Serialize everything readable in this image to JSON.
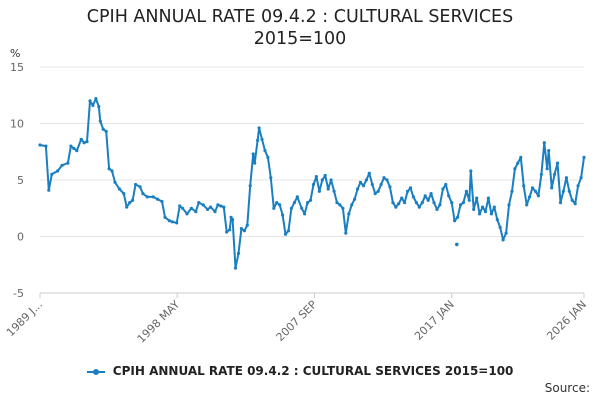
{
  "chart_data": {
    "type": "line",
    "title_lines": [
      "CPIH ANNUAL RATE 09.4.2 : CULTURAL SERVICES",
      "2015=100"
    ],
    "ylabel": "%",
    "ylim": [
      -5,
      15
    ],
    "yticks": [
      15,
      10,
      5,
      0,
      -5
    ],
    "xlim": [
      1989.0,
      2026.0
    ],
    "xticks": [
      {
        "label": "1989 J...",
        "x": 1989.0
      },
      {
        "label": "1998 MAY",
        "x": 1998.33
      },
      {
        "label": "2007 SEP",
        "x": 2007.67
      },
      {
        "label": "2017 JAN",
        "x": 2017.0
      },
      {
        "label": "2026 JAN",
        "x": 2026.0
      }
    ],
    "grid": true,
    "legend": "bottom-center",
    "color": "#1a7fc1",
    "series": [
      {
        "name": "CPIH ANNUAL RATE 09.4.2 : CULTURAL SERVICES 2015=100",
        "points": [
          [
            1989.0,
            8.1
          ],
          [
            1989.4,
            8.0
          ],
          [
            1989.6,
            4.1
          ],
          [
            1989.8,
            5.5
          ],
          [
            1990.2,
            5.8
          ],
          [
            1990.5,
            6.3
          ],
          [
            1990.9,
            6.5
          ],
          [
            1991.1,
            8.0
          ],
          [
            1991.3,
            7.8
          ],
          [
            1991.5,
            7.6
          ],
          [
            1991.8,
            8.6
          ],
          [
            1992.0,
            8.3
          ],
          [
            1992.2,
            8.4
          ],
          [
            1992.4,
            12.0
          ],
          [
            1992.6,
            11.6
          ],
          [
            1992.8,
            12.2
          ],
          [
            1993.0,
            11.5
          ],
          [
            1993.1,
            10.2
          ],
          [
            1993.3,
            9.5
          ],
          [
            1993.5,
            9.3
          ],
          [
            1993.7,
            6.0
          ],
          [
            1993.9,
            5.8
          ],
          [
            1994.1,
            4.8
          ],
          [
            1994.4,
            4.2
          ],
          [
            1994.7,
            3.8
          ],
          [
            1994.9,
            2.6
          ],
          [
            1995.1,
            3.0
          ],
          [
            1995.3,
            3.2
          ],
          [
            1995.5,
            4.6
          ],
          [
            1995.8,
            4.4
          ],
          [
            1996.0,
            3.8
          ],
          [
            1996.3,
            3.5
          ],
          [
            1996.7,
            3.5
          ],
          [
            1997.0,
            3.3
          ],
          [
            1997.3,
            3.1
          ],
          [
            1997.5,
            1.7
          ],
          [
            1997.8,
            1.4
          ],
          [
            1998.0,
            1.3
          ],
          [
            1998.3,
            1.2
          ],
          [
            1998.5,
            2.7
          ],
          [
            1998.7,
            2.5
          ],
          [
            1999.0,
            2.0
          ],
          [
            1999.3,
            2.5
          ],
          [
            1999.6,
            2.2
          ],
          [
            1999.8,
            3.0
          ],
          [
            2000.1,
            2.8
          ],
          [
            2000.4,
            2.4
          ],
          [
            2000.6,
            2.6
          ],
          [
            2000.9,
            2.2
          ],
          [
            2001.1,
            2.8
          ],
          [
            2001.3,
            2.7
          ],
          [
            2001.5,
            2.6
          ],
          [
            2001.7,
            0.4
          ],
          [
            2001.9,
            0.6
          ],
          [
            2002.0,
            1.7
          ],
          [
            2002.1,
            1.5
          ],
          [
            2002.3,
            -2.8
          ],
          [
            2002.5,
            -1.5
          ],
          [
            2002.7,
            0.7
          ],
          [
            2002.9,
            0.5
          ],
          [
            2003.1,
            1.0
          ],
          [
            2003.3,
            4.5
          ],
          [
            2003.5,
            7.3
          ],
          [
            2003.6,
            6.5
          ],
          [
            2003.8,
            8.5
          ],
          [
            2003.9,
            9.6
          ],
          [
            2004.1,
            8.6
          ],
          [
            2004.3,
            7.6
          ],
          [
            2004.5,
            7.0
          ],
          [
            2004.7,
            5.2
          ],
          [
            2004.9,
            2.5
          ],
          [
            2005.1,
            3.0
          ],
          [
            2005.3,
            2.8
          ],
          [
            2005.5,
            1.9
          ],
          [
            2005.7,
            0.2
          ],
          [
            2005.9,
            0.5
          ],
          [
            2006.1,
            2.5
          ],
          [
            2006.3,
            3.0
          ],
          [
            2006.5,
            3.5
          ],
          [
            2006.8,
            2.5
          ],
          [
            2007.0,
            2.0
          ],
          [
            2007.2,
            3.0
          ],
          [
            2007.4,
            3.2
          ],
          [
            2007.6,
            4.6
          ],
          [
            2007.8,
            5.3
          ],
          [
            2008.0,
            4.0
          ],
          [
            2008.2,
            5.0
          ],
          [
            2008.4,
            5.4
          ],
          [
            2008.6,
            4.2
          ],
          [
            2008.8,
            5.0
          ],
          [
            2009.0,
            4.0
          ],
          [
            2009.2,
            3.0
          ],
          [
            2009.4,
            2.8
          ],
          [
            2009.6,
            2.5
          ],
          [
            2009.8,
            0.3
          ],
          [
            2010.0,
            2.0
          ],
          [
            2010.2,
            2.8
          ],
          [
            2010.4,
            3.3
          ],
          [
            2010.6,
            4.2
          ],
          [
            2010.8,
            4.8
          ],
          [
            2011.0,
            4.5
          ],
          [
            2011.2,
            5.0
          ],
          [
            2011.4,
            5.6
          ],
          [
            2011.6,
            4.6
          ],
          [
            2011.8,
            3.8
          ],
          [
            2012.0,
            4.0
          ],
          [
            2012.2,
            4.6
          ],
          [
            2012.4,
            5.2
          ],
          [
            2012.6,
            5.0
          ],
          [
            2012.8,
            4.4
          ],
          [
            2013.0,
            3.0
          ],
          [
            2013.2,
            2.6
          ],
          [
            2013.4,
            2.9
          ],
          [
            2013.6,
            3.4
          ],
          [
            2013.8,
            3.0
          ],
          [
            2014.0,
            4.0
          ],
          [
            2014.2,
            4.3
          ],
          [
            2014.4,
            3.5
          ],
          [
            2014.6,
            3.0
          ],
          [
            2014.8,
            2.6
          ],
          [
            2015.0,
            3.0
          ],
          [
            2015.2,
            3.6
          ],
          [
            2015.4,
            3.2
          ],
          [
            2015.6,
            3.8
          ],
          [
            2015.8,
            3.0
          ],
          [
            2016.0,
            2.4
          ],
          [
            2016.2,
            2.8
          ],
          [
            2016.4,
            4.2
          ],
          [
            2016.6,
            4.6
          ],
          [
            2016.8,
            3.6
          ],
          [
            2017.0,
            3.0
          ],
          [
            2017.2,
            1.4
          ],
          [
            2017.4,
            1.7
          ],
          [
            2017.6,
            2.8
          ],
          [
            2017.8,
            3.0
          ],
          [
            2018.0,
            4.0
          ],
          [
            2018.2,
            3.2
          ],
          [
            2018.3,
            5.8
          ],
          [
            2018.5,
            2.4
          ],
          [
            2018.7,
            3.4
          ],
          [
            2018.9,
            2.0
          ],
          [
            2019.1,
            2.6
          ],
          [
            2019.3,
            2.2
          ],
          [
            2019.5,
            3.4
          ],
          [
            2019.7,
            2.0
          ],
          [
            2019.9,
            2.6
          ],
          [
            2020.1,
            1.5
          ],
          [
            2020.3,
            0.8
          ],
          [
            2020.5,
            -0.3
          ],
          [
            2020.7,
            0.3
          ],
          [
            2020.9,
            2.8
          ],
          [
            2021.1,
            4.0
          ],
          [
            2021.3,
            6.0
          ],
          [
            2021.5,
            6.5
          ],
          [
            2021.7,
            7.0
          ],
          [
            2021.9,
            4.5
          ],
          [
            2022.1,
            2.8
          ],
          [
            2022.3,
            3.5
          ],
          [
            2022.5,
            4.3
          ],
          [
            2022.7,
            4.0
          ],
          [
            2022.9,
            3.6
          ],
          [
            2023.1,
            5.5
          ],
          [
            2023.3,
            8.3
          ],
          [
            2023.5,
            6.0
          ],
          [
            2023.6,
            7.6
          ],
          [
            2023.8,
            4.3
          ],
          [
            2024.0,
            5.5
          ],
          [
            2024.2,
            6.5
          ],
          [
            2024.4,
            3.0
          ],
          [
            2024.6,
            4.0
          ],
          [
            2024.8,
            5.2
          ],
          [
            2025.0,
            4.0
          ],
          [
            2025.2,
            3.2
          ],
          [
            2025.4,
            2.9
          ],
          [
            2025.6,
            4.5
          ],
          [
            2025.8,
            5.2
          ],
          [
            2026.0,
            7.0
          ]
        ],
        "isolated_points": [
          [
            2017.35,
            -0.7
          ]
        ]
      }
    ]
  },
  "legend": {
    "label": "CPIH ANNUAL RATE 09.4.2 : CULTURAL SERVICES 2015=100"
  },
  "source": {
    "label": "Source:"
  }
}
